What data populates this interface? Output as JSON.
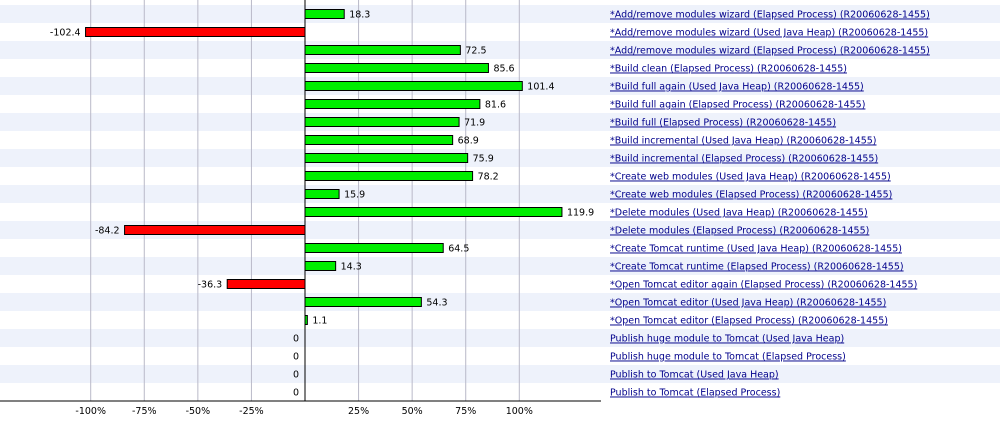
{
  "chart_data": {
    "type": "bar",
    "orientation": "horizontal",
    "unit": "%",
    "xlim": [
      -100,
      120
    ],
    "ticks": [
      "-100%",
      "-75%",
      "-50%",
      "-25%",
      "25%",
      "50%",
      "75%",
      "100%"
    ],
    "tick_values": [
      -100,
      -75,
      -50,
      -25,
      25,
      50,
      75,
      100
    ],
    "grid": true,
    "colors": {
      "positive": "#00ee00",
      "negative": "#ff0000",
      "stripe": "#eef2fb",
      "link": "#00008b"
    },
    "categories": [
      "*Add/remove modules wizard (Elapsed Process) (R20060628-1455)",
      "*Add/remove modules wizard (Used Java Heap) (R20060628-1455)",
      "*Add/remove modules wizard (Elapsed Process) (R20060628-1455)",
      "*Build clean (Elapsed Process) (R20060628-1455)",
      "*Build full again (Used Java Heap) (R20060628-1455)",
      "*Build full again (Elapsed Process) (R20060628-1455)",
      "*Build full (Elapsed Process) (R20060628-1455)",
      "*Build incremental (Used Java Heap) (R20060628-1455)",
      "*Build incremental (Elapsed Process) (R20060628-1455)",
      "*Create web modules (Used Java Heap) (R20060628-1455)",
      "*Create web modules (Elapsed Process) (R20060628-1455)",
      "*Delete modules (Used Java Heap) (R20060628-1455)",
      "*Delete modules (Elapsed Process) (R20060628-1455)",
      "*Create Tomcat runtime (Used Java Heap) (R20060628-1455)",
      "*Create Tomcat runtime (Elapsed Process) (R20060628-1455)",
      "*Open Tomcat editor again (Elapsed Process) (R20060628-1455)",
      "*Open Tomcat editor (Used Java Heap) (R20060628-1455)",
      "*Open Tomcat editor (Elapsed Process) (R20060628-1455)",
      "Publish huge module to Tomcat (Used Java Heap)",
      "Publish huge module to Tomcat (Elapsed Process)",
      "Publish to Tomcat (Used Java Heap)",
      "Publish to Tomcat (Elapsed Process)"
    ],
    "values": [
      18.3,
      -102.4,
      72.5,
      85.6,
      101.4,
      81.6,
      71.9,
      68.9,
      75.9,
      78.2,
      15.9,
      119.9,
      -84.2,
      64.5,
      14.3,
      -36.3,
      54.3,
      1.1,
      0,
      0,
      0,
      0
    ],
    "value_labels": [
      "18.3",
      "-102.4",
      "72.5",
      "85.6",
      "101.4",
      "81.6",
      "71.9",
      "68.9",
      "75.9",
      "78.2",
      "15.9",
      "119.9",
      "-84.2",
      "64.5",
      "14.3",
      "-36.3",
      "54.3",
      "1.1",
      "0",
      "0",
      "0",
      "0"
    ]
  }
}
